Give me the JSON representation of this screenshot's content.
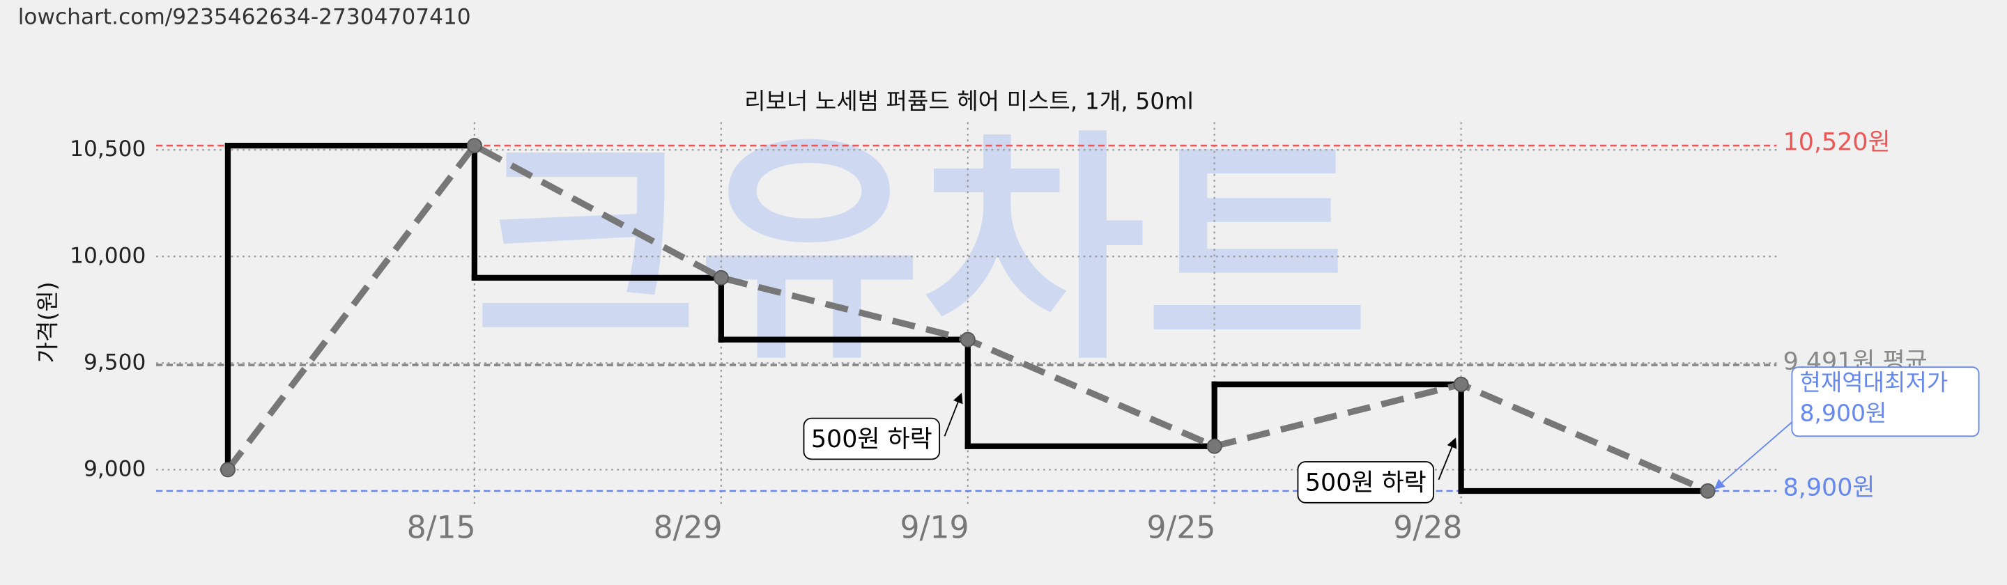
{
  "source_url": "lowchart.com/9235462634-27304707410",
  "chart_data": {
    "type": "line",
    "title": "리보너 노세범 퍼퓸드 헤어 미스트, 1개, 50ml",
    "y_label": "가격(원)",
    "watermark": "크유차트",
    "categories": [
      null,
      "8/15",
      "8/29",
      "9/19",
      "9/25",
      "9/28",
      null
    ],
    "values": [
      9000,
      10520,
      9900,
      9610,
      9110,
      9400,
      8900
    ],
    "step_color": "#000000",
    "trend_color": "#777777",
    "ylim": [
      8830,
      10630
    ],
    "yticks": [
      {
        "value": 9000,
        "label": "9,000"
      },
      {
        "value": 9500,
        "label": "9,500"
      },
      {
        "value": 10000,
        "label": "10,000"
      },
      {
        "value": 10500,
        "label": "10,500"
      }
    ],
    "grid": true,
    "reference_lines": [
      {
        "value": 10520,
        "label": "10,520원",
        "color": "#ee5555"
      },
      {
        "value": 9491,
        "label": "9,491원 평균",
        "color": "#888888"
      },
      {
        "value": 8900,
        "label": "8,900원",
        "color": "#6688ee"
      }
    ],
    "annotations": [
      {
        "text": "500원 하락"
      },
      {
        "text": "500원 하락"
      }
    ],
    "callout": {
      "lines": [
        "현재역대최저가",
        "8,900원"
      ],
      "color": "#6688ee"
    }
  }
}
